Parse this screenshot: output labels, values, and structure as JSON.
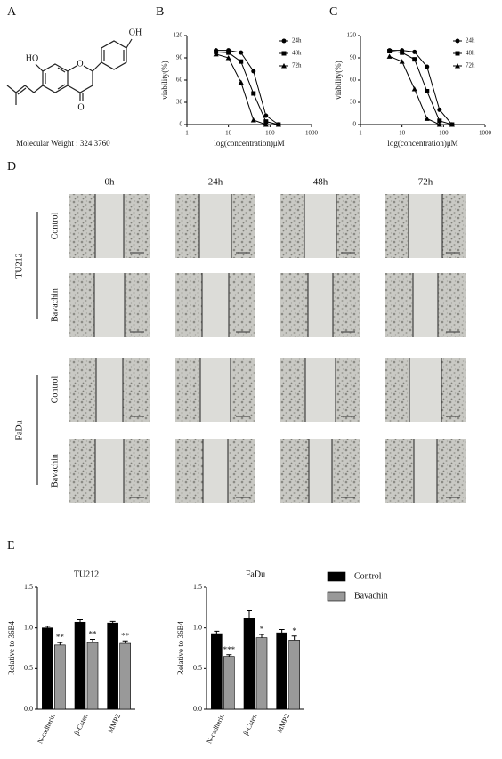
{
  "panel_labels": [
    "A",
    "B",
    "C",
    "D",
    "E"
  ],
  "panel_a": {
    "atoms": [
      "HO",
      "O",
      "OH",
      "O"
    ],
    "caption": "Molecular Weight : 324.3760"
  },
  "panel_d": {
    "timepoints": [
      "0h",
      "24h",
      "48h",
      "72h"
    ],
    "cell_lines": [
      {
        "name": "TU212",
        "conditions": [
          "Control",
          "Bavachin"
        ]
      },
      {
        "name": "FaDu",
        "conditions": [
          "Control",
          "Bavachin"
        ]
      }
    ]
  },
  "chart_data": [
    {
      "type": "line",
      "log_x": true,
      "x_label": "log(concentration)μM",
      "y_label": "viability(%)",
      "x": [
        5,
        10,
        20,
        40,
        80,
        160
      ],
      "series": [
        {
          "name": "24h",
          "color": "#000000",
          "marker": "circle",
          "values": [
            100,
            100,
            97,
            72,
            12,
            0
          ]
        },
        {
          "name": "48h",
          "color": "#000000",
          "marker": "square",
          "values": [
            98,
            97,
            85,
            42,
            4,
            0
          ]
        },
        {
          "name": "72h",
          "color": "#000000",
          "marker": "triangle",
          "values": [
            95,
            90,
            57,
            6,
            0,
            0
          ]
        }
      ],
      "xlim": [
        1,
        1000
      ],
      "xticks": [
        1,
        10,
        100,
        1000
      ],
      "ylim": [
        0,
        120
      ],
      "yticks": [
        0,
        30,
        60,
        90,
        120
      ],
      "legend": "upper right"
    },
    {
      "type": "line",
      "log_x": true,
      "x_label": "log(concentration)μM",
      "y_label": "viability(%)",
      "x": [
        5,
        10,
        20,
        40,
        80,
        160
      ],
      "series": [
        {
          "name": "24h",
          "color": "#000000",
          "marker": "circle",
          "values": [
            100,
            100,
            98,
            78,
            20,
            0
          ]
        },
        {
          "name": "48h",
          "color": "#000000",
          "marker": "square",
          "values": [
            99,
            97,
            88,
            45,
            5,
            0
          ]
        },
        {
          "name": "72h",
          "color": "#000000",
          "marker": "triangle",
          "values": [
            92,
            85,
            48,
            8,
            0,
            0
          ]
        }
      ],
      "xlim": [
        1,
        1000
      ],
      "xticks": [
        1,
        10,
        100,
        1000
      ],
      "ylim": [
        0,
        120
      ],
      "yticks": [
        0,
        30,
        60,
        90,
        120
      ],
      "legend": "upper right"
    },
    {
      "type": "bar",
      "title": "TU212",
      "y_label": "Relative to 36B4",
      "categories": [
        "N-cadherin",
        "β-Caten",
        "MMP2"
      ],
      "series": [
        {
          "color": "#000000",
          "values": [
            1.0,
            1.07,
            1.06
          ],
          "errors": [
            0.02,
            0.03,
            0.02
          ]
        },
        {
          "color": "#999999",
          "values": [
            0.79,
            0.82,
            0.81
          ],
          "errors": [
            0.03,
            0.04,
            0.03
          ],
          "annotations": [
            "**",
            "**",
            "**"
          ]
        }
      ],
      "ylim": [
        0,
        1.5
      ],
      "yticks": [
        {
          "value": 0,
          "label": "0.0"
        },
        0.5,
        {
          "value": 1,
          "label": "1.0"
        },
        1.5
      ]
    },
    {
      "type": "bar",
      "title": "FaDu",
      "y_label": "Relative to 36B4",
      "categories": [
        "N-cadherin",
        "β-Caten",
        "MMP2"
      ],
      "series": [
        {
          "name": "Control",
          "color": "#000000",
          "values": [
            0.93,
            1.12,
            0.94
          ],
          "errors": [
            0.03,
            0.09,
            0.04
          ]
        },
        {
          "name": "Bavachin",
          "color": "#999999",
          "values": [
            0.65,
            0.88,
            0.85
          ],
          "errors": [
            0.02,
            0.04,
            0.05
          ],
          "annotations": [
            "***",
            "*",
            "*"
          ]
        }
      ],
      "ylim": [
        0,
        1.5
      ],
      "yticks": [
        {
          "value": 0,
          "label": "0.0"
        },
        0.5,
        {
          "value": 1,
          "label": "1.0"
        },
        1.5
      ]
    }
  ]
}
